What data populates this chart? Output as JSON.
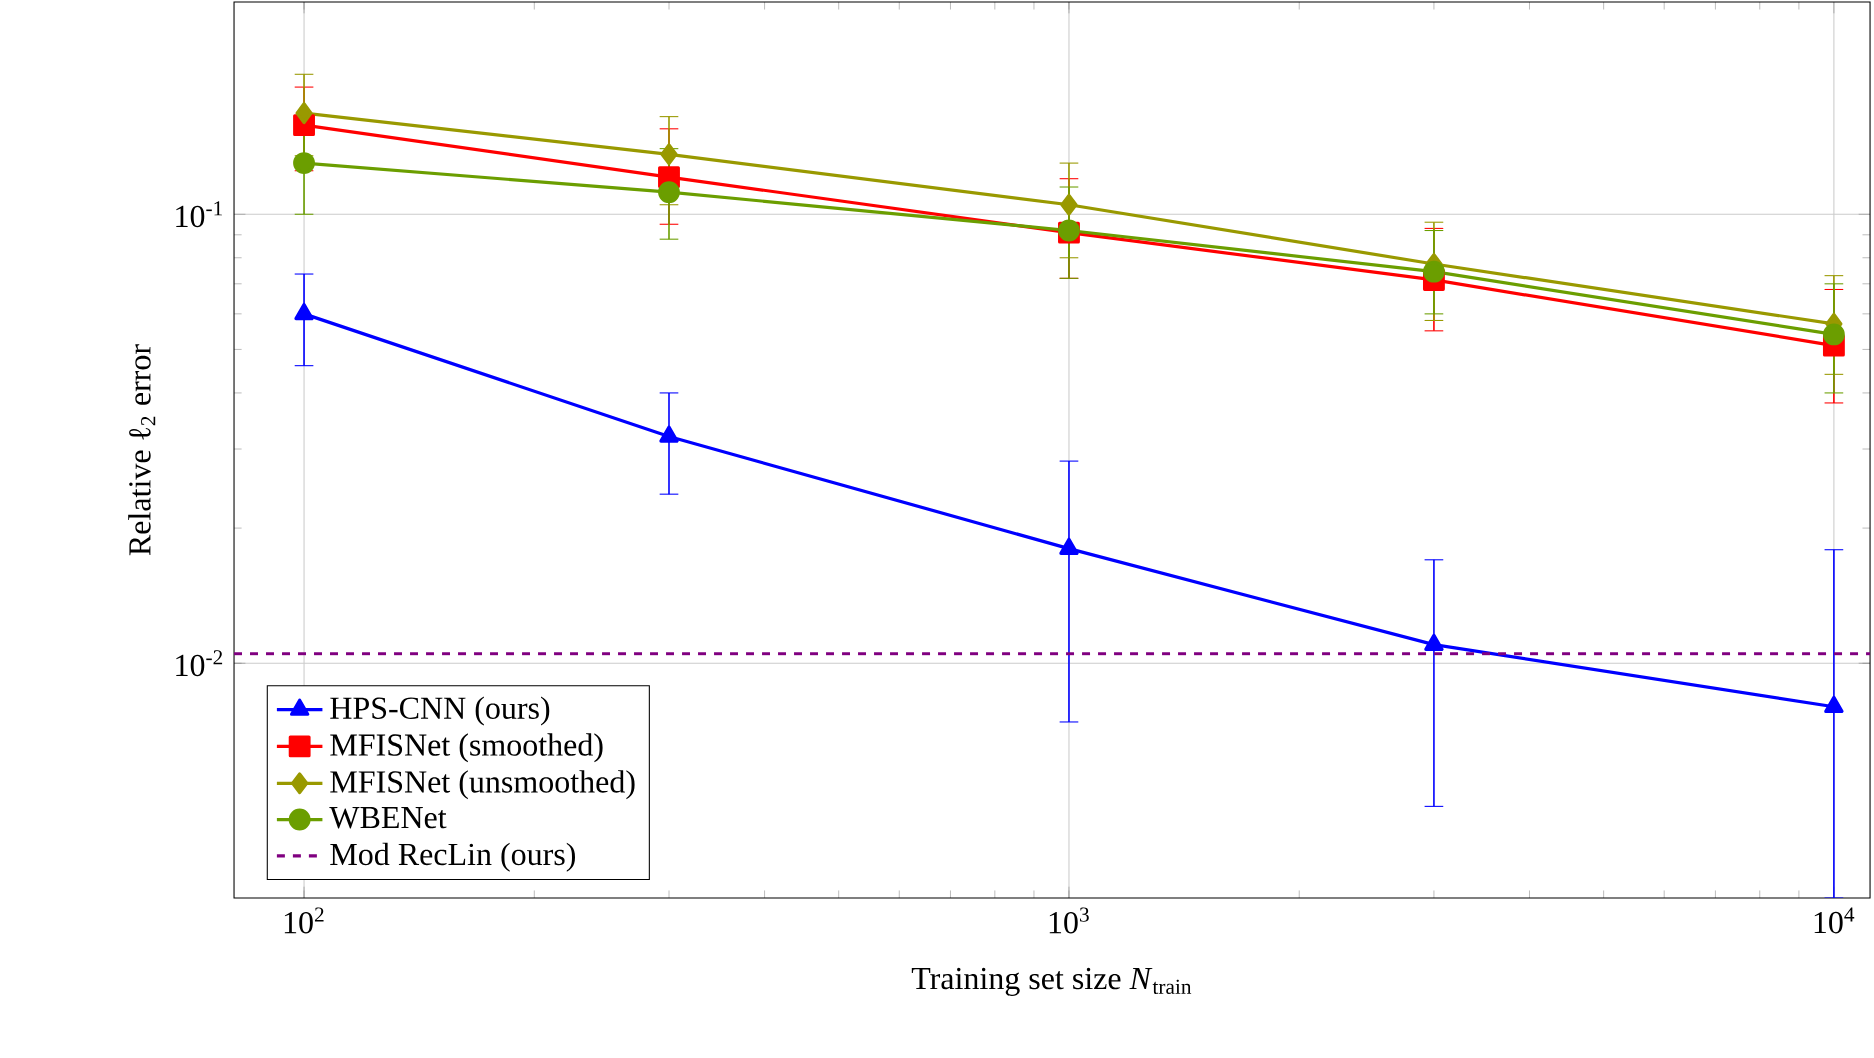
{
  "chart_data": {
    "type": "line",
    "xlabel": "Training set size *N*$_{train}$",
    "ylabel": "Relative ℓ$_{2}$ error",
    "x": [
      100,
      300,
      1000,
      3000,
      10000
    ],
    "series": [
      {
        "name": "HPS-CNN (ours)",
        "color": "#0000ff",
        "marker": "triangle",
        "values": [
          0.06,
          0.032,
          0.018,
          0.011,
          0.008
        ],
        "errors": [
          [
            0.046,
            0.0736
          ],
          [
            0.0238,
            0.04
          ],
          [
            0.0074,
            0.0282
          ],
          [
            0.0048,
            0.017
          ],
          [
            0.003,
            0.0179
          ]
        ]
      },
      {
        "name": "MFISNet (smoothed)",
        "color": "#ff0000",
        "marker": "square",
        "values": [
          0.158,
          0.121,
          0.091,
          0.0714,
          0.051
        ],
        "errors": [
          [
            0.125,
            0.192
          ],
          [
            0.095,
            0.155
          ],
          [
            0.072,
            0.12
          ],
          [
            0.055,
            0.093
          ],
          [
            0.038,
            0.068
          ]
        ]
      },
      {
        "name": "MFISNet (unsmoothed)",
        "color": "#999900",
        "marker": "diamond",
        "values": [
          0.168,
          0.136,
          0.105,
          0.0775,
          0.057
        ],
        "errors": [
          [
            0.135,
            0.205
          ],
          [
            0.105,
            0.165
          ],
          [
            0.08,
            0.13
          ],
          [
            0.058,
            0.096
          ],
          [
            0.044,
            0.073
          ]
        ]
      },
      {
        "name": "WBENet",
        "color": "#6b9e00",
        "marker": "circle",
        "values": [
          0.13,
          0.112,
          0.092,
          0.0745,
          0.054
        ],
        "errors": [
          [
            0.1,
            0.165
          ],
          [
            0.088,
            0.14
          ],
          [
            0.072,
            0.115
          ],
          [
            0.06,
            0.092
          ],
          [
            0.04,
            0.07
          ]
        ]
      }
    ],
    "ref_lines": [
      {
        "axis": "y",
        "value": 0.0105,
        "label": "Mod RecLin (ours)",
        "color": "#800080",
        "line_style": "dashed"
      }
    ],
    "log": "xy",
    "grid": true,
    "legend": "bottom left",
    "xlim": [
      81,
      11150
    ],
    "ylim": [
      0.003,
      0.297
    ],
    "xticks": [
      {
        "value": 100,
        "label": "10$^{2}$"
      },
      {
        "value": 1000,
        "label": "10$^{3}$"
      },
      {
        "value": 10000,
        "label": "10$^{4}$"
      }
    ],
    "yticks": [
      {
        "value": 0.01,
        "label": "10$^{-2}$"
      },
      {
        "value": 0.1,
        "label": "10$^{-1}$"
      }
    ]
  }
}
